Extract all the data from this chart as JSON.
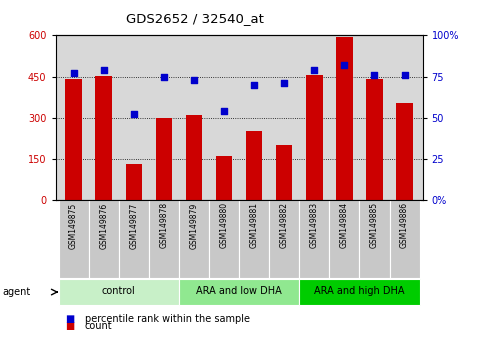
{
  "title": "GDS2652 / 32540_at",
  "samples": [
    "GSM149875",
    "GSM149876",
    "GSM149877",
    "GSM149878",
    "GSM149879",
    "GSM149880",
    "GSM149881",
    "GSM149882",
    "GSM149883",
    "GSM149884",
    "GSM149885",
    "GSM149886"
  ],
  "counts": [
    440,
    452,
    130,
    300,
    310,
    160,
    250,
    200,
    455,
    595,
    440,
    355
  ],
  "percentiles": [
    77,
    79,
    52,
    75,
    73,
    54,
    70,
    71,
    79,
    82,
    76,
    76
  ],
  "groups": [
    {
      "label": "control",
      "start": 0,
      "end": 4,
      "color": "#c8f0c8"
    },
    {
      "label": "ARA and low DHA",
      "start": 4,
      "end": 8,
      "color": "#90e890"
    },
    {
      "label": "ARA and high DHA",
      "start": 8,
      "end": 12,
      "color": "#00cc00"
    }
  ],
  "bar_color": "#cc0000",
  "dot_color": "#0000cc",
  "left_yticks": [
    0,
    150,
    300,
    450,
    600
  ],
  "right_yticks": [
    0,
    25,
    50,
    75,
    100
  ],
  "left_ylabel_color": "#cc0000",
  "right_ylabel_color": "#0000cc",
  "bg_color": "#d8d8d8",
  "agent_label": "agent",
  "legend_count_label": "count",
  "legend_pct_label": "percentile rank within the sample",
  "tick_fontsize": 7,
  "right_tick_labels": [
    "0%",
    "25",
    "50",
    "75",
    "100%"
  ]
}
